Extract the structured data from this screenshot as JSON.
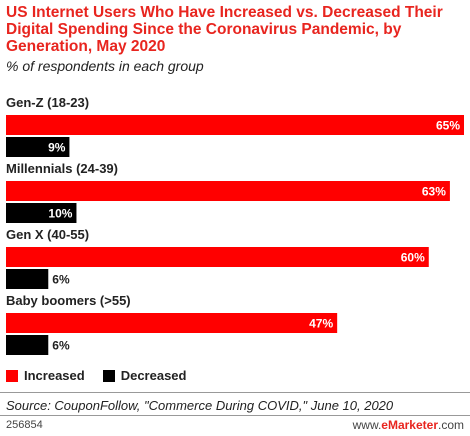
{
  "title": "US Internet Users Who Have Increased vs. Decreased Their Digital Spending Since the Coronavirus Pandemic, by Generation, May 2020",
  "subtitle": "% of respondents in each group",
  "colors": {
    "increased": "#ff0000",
    "decreased": "#000000",
    "title": "#e8251f"
  },
  "legend": {
    "increased": "Increased",
    "decreased": "Decreased"
  },
  "source": "Source: CouponFollow, \"Commerce During COVID,\" June 10, 2020",
  "footer": {
    "id": "256854",
    "brand_prefix": "www.",
    "brand_name": "eMarketer",
    "brand_suffix": ".com"
  },
  "chart_data": {
    "type": "bar",
    "orientation": "horizontal",
    "categories": [
      "Gen-Z (18-23)",
      "Millennials (24-39)",
      "Gen X (40-55)",
      "Baby boomers (>55)"
    ],
    "series": [
      {
        "name": "Increased",
        "values": [
          65,
          63,
          60,
          47
        ]
      },
      {
        "name": "Decreased",
        "values": [
          9,
          10,
          6,
          6
        ]
      }
    ],
    "value_suffix": "%",
    "xlim": [
      0,
      65
    ],
    "grid": false,
    "legend_position": "bottom-left"
  }
}
